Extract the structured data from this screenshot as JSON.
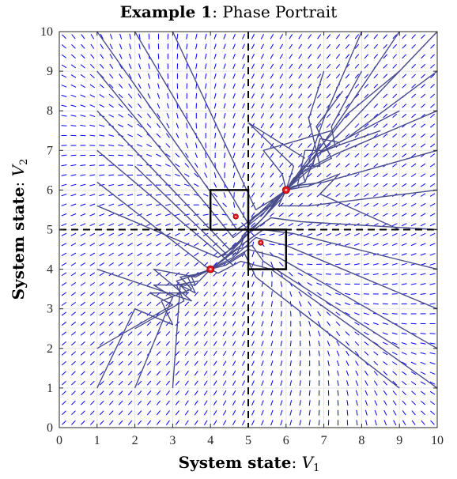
{
  "chart_data": {
    "type": "phase-portrait",
    "title": {
      "bold": "Example 1",
      "rest": ": Phase Portrait"
    },
    "xlabel": {
      "bold": "System state",
      "rest": ": ",
      "var": "V",
      "sub": "1"
    },
    "ylabel": {
      "bold": "System state",
      "rest": ": ",
      "var": "V",
      "sub": "2"
    },
    "xlim": [
      0,
      10
    ],
    "ylim": [
      0,
      10
    ],
    "xticks": [
      0,
      1,
      2,
      3,
      4,
      5,
      6,
      7,
      8,
      9,
      10
    ],
    "yticks": [
      0,
      1,
      2,
      3,
      4,
      5,
      6,
      7,
      8,
      9,
      10
    ],
    "grid": true,
    "dashed_lines": {
      "x": 5,
      "y": 5
    },
    "vector_field": {
      "color": "#0000ff",
      "step": 0.25
    },
    "boxes": [
      {
        "x0": 4,
        "x1": 5,
        "y0": 5,
        "y1": 6
      },
      {
        "x0": 5,
        "x1": 6,
        "y0": 4,
        "y1": 5
      }
    ],
    "equilibria": [
      {
        "x": 4,
        "y": 4,
        "size": "large"
      },
      {
        "x": 6,
        "y": 6,
        "size": "large"
      },
      {
        "x": 4.67,
        "y": 5.33,
        "size": "small"
      },
      {
        "x": 5.33,
        "y": 4.67,
        "size": "small"
      }
    ],
    "trajectory_color": "#4a4d8c",
    "marker_color": "#e8141e",
    "trajectories": [
      [
        [
          1,
          1
        ],
        [
          2,
          3
        ],
        [
          3,
          2.6
        ],
        [
          2.7,
          3.2
        ],
        [
          3.5,
          3.5
        ],
        [
          3.2,
          3.8
        ],
        [
          3.8,
          3.9
        ],
        [
          4,
          4
        ]
      ],
      [
        [
          1,
          2
        ],
        [
          3,
          3.1
        ],
        [
          2.4,
          3.4
        ],
        [
          3.4,
          3.4
        ],
        [
          3.1,
          3.7
        ],
        [
          3.9,
          3.95
        ],
        [
          4,
          4
        ]
      ],
      [
        [
          2,
          1
        ],
        [
          3,
          3.3
        ],
        [
          2.5,
          3.6
        ],
        [
          3.6,
          3.6
        ],
        [
          3.5,
          3.8
        ],
        [
          4,
          4
        ]
      ],
      [
        [
          3,
          1
        ],
        [
          3.2,
          3.6
        ],
        [
          3.6,
          3.4
        ],
        [
          3.4,
          3.8
        ],
        [
          4,
          4
        ]
      ],
      [
        [
          1,
          4
        ],
        [
          3.5,
          3.2
        ],
        [
          2.5,
          4
        ],
        [
          3.6,
          3.8
        ],
        [
          4,
          4
        ]
      ],
      [
        [
          2,
          2.5
        ],
        [
          3.3,
          3.2
        ],
        [
          3.1,
          3.6
        ],
        [
          3.7,
          3.7
        ],
        [
          4,
          4
        ]
      ],
      [
        [
          1,
          6.2
        ],
        [
          3.9,
          4.05
        ],
        [
          4.1,
          4.05
        ],
        [
          4,
          4
        ]
      ],
      [
        [
          1,
          7
        ],
        [
          4.6,
          4.1
        ],
        [
          4.3,
          4.35
        ],
        [
          4.7,
          4.4
        ],
        [
          4.8,
          4.6
        ],
        [
          5.1,
          5.3
        ],
        [
          5.6,
          5.6
        ],
        [
          6,
          6
        ]
      ],
      [
        [
          1,
          8
        ],
        [
          4.5,
          4.5
        ],
        [
          4.8,
          4.7
        ],
        [
          5.4,
          5.3
        ],
        [
          5.8,
          5.8
        ],
        [
          6,
          6
        ]
      ],
      [
        [
          1,
          9
        ],
        [
          4.6,
          4.8
        ],
        [
          5,
          5.1
        ],
        [
          5.5,
          5.5
        ],
        [
          5.7,
          5.8
        ],
        [
          6,
          6
        ]
      ],
      [
        [
          1,
          10
        ],
        [
          4.7,
          5
        ],
        [
          5.3,
          5.4
        ],
        [
          5.9,
          5.9
        ],
        [
          6,
          6
        ]
      ],
      [
        [
          2,
          10
        ],
        [
          5,
          5.15
        ],
        [
          5.6,
          5.7
        ],
        [
          6,
          6
        ]
      ],
      [
        [
          3,
          10
        ],
        [
          5.2,
          5.5
        ],
        [
          5.8,
          5.85
        ],
        [
          6,
          6
        ]
      ],
      [
        [
          1,
          5.6
        ],
        [
          4.2,
          4.3
        ],
        [
          4.7,
          4.6
        ],
        [
          4.9,
          4.9
        ],
        [
          5.3,
          5.2
        ],
        [
          5.9,
          5.8
        ],
        [
          6,
          6
        ]
      ],
      [
        [
          2,
          6.6
        ],
        [
          4.4,
          4.4
        ],
        [
          5.1,
          5.0
        ],
        [
          5.5,
          5.4
        ],
        [
          6,
          6
        ]
      ],
      [
        [
          9,
          9
        ],
        [
          7.6,
          7.9
        ],
        [
          7.2,
          7.4
        ],
        [
          6.9,
          7.1
        ],
        [
          6.6,
          6.8
        ],
        [
          6.3,
          6.4
        ],
        [
          6,
          6
        ]
      ],
      [
        [
          8,
          9
        ],
        [
          7.2,
          7.6
        ],
        [
          7.3,
          7.1
        ],
        [
          6.8,
          6.9
        ],
        [
          6.5,
          6.2
        ],
        [
          6,
          6
        ]
      ],
      [
        [
          9,
          8
        ],
        [
          7.4,
          7.2
        ],
        [
          6.9,
          7.3
        ],
        [
          6.7,
          6.6
        ],
        [
          6.2,
          6.3
        ],
        [
          6,
          6
        ]
      ],
      [
        [
          7.5,
          8.5
        ],
        [
          6.8,
          7.6
        ],
        [
          7.2,
          6.8
        ],
        [
          6.6,
          6.5
        ],
        [
          6,
          6
        ]
      ],
      [
        [
          8.5,
          7.5
        ],
        [
          7,
          7
        ],
        [
          6.5,
          7
        ],
        [
          6.3,
          6.1
        ],
        [
          6,
          6
        ]
      ],
      [
        [
          7,
          9
        ],
        [
          6.6,
          7.8
        ],
        [
          6.9,
          6.6
        ],
        [
          6.4,
          6.6
        ],
        [
          6.5,
          6.2
        ],
        [
          6,
          6
        ]
      ],
      [
        [
          6.5,
          6.8
        ],
        [
          5,
          7.7
        ],
        [
          6.2,
          6.6
        ],
        [
          6,
          6
        ]
      ],
      [
        [
          7.2,
          7.5
        ],
        [
          5.4,
          7
        ],
        [
          5.9,
          6.4
        ],
        [
          6,
          6
        ]
      ],
      [
        [
          9,
          5
        ],
        [
          6.9,
          5.9
        ],
        [
          7.4,
          6.4
        ],
        [
          6.6,
          6.1
        ],
        [
          6,
          6
        ]
      ],
      [
        [
          9,
          2
        ],
        [
          5.4,
          4.2
        ],
        [
          5.1,
          4.6
        ],
        [
          4.7,
          4.5
        ],
        [
          4.3,
          4.2
        ],
        [
          4,
          4
        ]
      ],
      [
        [
          9,
          1
        ],
        [
          5.2,
          3.8
        ],
        [
          4.9,
          4.4
        ],
        [
          4.4,
          4.1
        ],
        [
          4,
          4
        ]
      ],
      [
        [
          10,
          1
        ],
        [
          5.6,
          4.0
        ],
        [
          4.8,
          4.2
        ],
        [
          4.2,
          3.9
        ],
        [
          4,
          4
        ]
      ],
      [
        [
          10,
          2
        ],
        [
          5.8,
          4.3
        ],
        [
          5,
          4.5
        ],
        [
          4.5,
          4.2
        ],
        [
          4,
          4
        ]
      ],
      [
        [
          10,
          3
        ],
        [
          6,
          4.6
        ],
        [
          5.2,
          4.8
        ],
        [
          4.6,
          4.3
        ],
        [
          4,
          4
        ]
      ],
      [
        [
          10,
          4
        ],
        [
          6.2,
          4.9
        ],
        [
          5.4,
          5.0
        ],
        [
          4.8,
          4.6
        ],
        [
          4,
          4
        ]
      ],
      [
        [
          10,
          5
        ],
        [
          6.4,
          5.2
        ],
        [
          5.6,
          5.3
        ],
        [
          5,
          4.9
        ],
        [
          4.4,
          4.3
        ],
        [
          4,
          4
        ]
      ],
      [
        [
          10,
          6
        ],
        [
          6.6,
          5.6
        ],
        [
          5.8,
          5.6
        ],
        [
          6,
          6
        ]
      ],
      [
        [
          10,
          7
        ],
        [
          7,
          6.2
        ],
        [
          6.2,
          6.1
        ],
        [
          6,
          6
        ]
      ],
      [
        [
          10,
          8
        ],
        [
          7.3,
          6.9
        ],
        [
          6.5,
          6.5
        ],
        [
          6,
          6
        ]
      ],
      [
        [
          10,
          9
        ],
        [
          7.6,
          7.3
        ],
        [
          6.8,
          6.9
        ],
        [
          6,
          6
        ]
      ],
      [
        [
          9,
          10
        ],
        [
          7.3,
          7.6
        ],
        [
          6.7,
          6.8
        ],
        [
          6,
          6
        ]
      ],
      [
        [
          10,
          10
        ],
        [
          7.5,
          7.5
        ],
        [
          6.5,
          6.6
        ],
        [
          6,
          6
        ]
      ],
      [
        [
          8,
          10
        ],
        [
          7,
          7.8
        ],
        [
          6.6,
          6.7
        ],
        [
          6,
          6
        ]
      ]
    ]
  }
}
